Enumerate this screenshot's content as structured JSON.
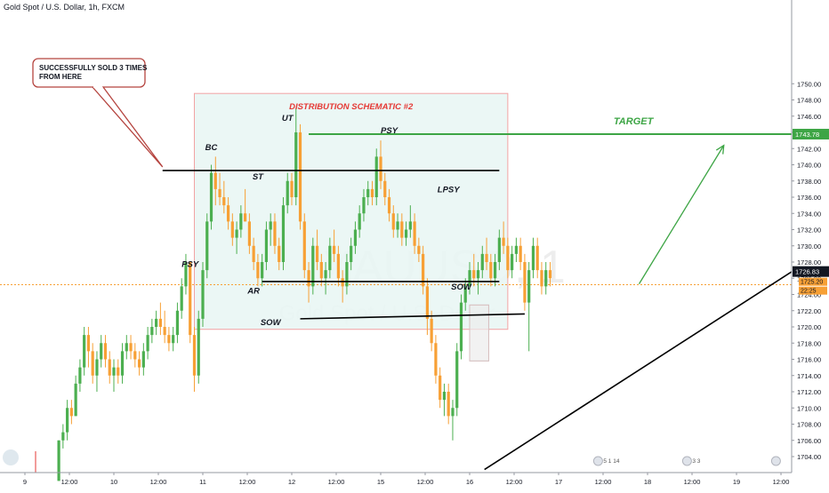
{
  "header": {
    "symbol": "Gold Spot / U.S. Dollar, 1h, FXCM"
  },
  "watermark": {
    "symbol": "XAUUSD, 1",
    "name": "Gold Spot / U.S. Dollar"
  },
  "colors": {
    "up": "#4caf50",
    "down": "#f7a035",
    "box_fill": "#e8f6f3",
    "box_stroke": "#f2a3a3",
    "target": "#3da545",
    "price_line": "#f7a035",
    "title_red": "#e53935"
  },
  "annotations": {
    "schematic_title": "DISTRIBUTION SCHEMATIC #2",
    "target_label": "TARGET",
    "callout_line1": "SUCCESSFULLY SOLD 3 TIMES",
    "callout_line2": "FROM HERE",
    "labels": [
      {
        "key": "ut",
        "text": "UT",
        "x": 62,
        "y": 1745.4
      },
      {
        "key": "psy_top",
        "text": "PSY",
        "x": 86,
        "y": 1743.9
      },
      {
        "key": "bc",
        "text": "BC",
        "x": 44,
        "y": 1741.8
      },
      {
        "key": "st",
        "text": "ST",
        "x": 55,
        "y": 1738.2
      },
      {
        "key": "lpsy",
        "text": "LPSY",
        "x": 100,
        "y": 1736.6
      },
      {
        "key": "psy_low",
        "text": "PSY",
        "x": 39,
        "y": 1727.4
      },
      {
        "key": "sow_right",
        "text": "SOW",
        "x": 103,
        "y": 1724.6
      },
      {
        "key": "ar",
        "text": "AR",
        "x": 54,
        "y": 1724.1
      },
      {
        "key": "sow_left",
        "text": "SOW",
        "x": 58,
        "y": 1720.2
      }
    ]
  },
  "chart_data": {
    "type": "candlestick",
    "symbol": "Gold Spot / U.S. Dollar",
    "timeframe": "1h",
    "ylim": [
      1703,
      1751
    ],
    "y_ticks": [
      1704,
      1706,
      1708,
      1710,
      1712,
      1714,
      1716,
      1718,
      1720,
      1722,
      1724,
      1726,
      1728,
      1730,
      1732,
      1734,
      1736,
      1738,
      1740,
      1742,
      1744,
      1746,
      1748,
      1750
    ],
    "x_ticks": [
      {
        "label": "9",
        "bar": 0
      },
      {
        "label": "12:00",
        "bar": 10.5
      },
      {
        "label": "10",
        "bar": 21
      },
      {
        "label": "12:00",
        "bar": 31.5
      },
      {
        "label": "11",
        "bar": 42
      },
      {
        "label": "12:00",
        "bar": 52.5
      },
      {
        "label": "12",
        "bar": 63
      },
      {
        "label": "12:00",
        "bar": 73.5
      },
      {
        "label": "15",
        "bar": 84
      },
      {
        "label": "12:00",
        "bar": 94.5
      },
      {
        "label": "16",
        "bar": 105
      },
      {
        "label": "12:00",
        "bar": 115.5
      },
      {
        "label": "17",
        "bar": 126
      },
      {
        "label": "12:00",
        "bar": 136.5
      },
      {
        "label": "18",
        "bar": 147
      },
      {
        "label": "12:00",
        "bar": 157.5
      },
      {
        "label": "19",
        "bar": 168
      },
      {
        "label": "12:00",
        "bar": 178.5
      }
    ],
    "current_price": {
      "value": 1726.83,
      "label": "1726.83"
    },
    "target_price": {
      "value": 1743.78,
      "label": "1743.78"
    },
    "price_line_value": 1725.2,
    "small_labels": [
      "1725.20",
      "22:25"
    ],
    "events": [
      {
        "label": "5 1 14",
        "bar": 137
      },
      {
        "label": "3 3",
        "bar": 158
      },
      {
        "label": "",
        "bar": 179
      }
    ],
    "ohlc_start_bar": 8,
    "ohlc": [
      [
        1701,
        1706,
        1701,
        1706
      ],
      [
        1706,
        1708,
        1705,
        1707
      ],
      [
        1707,
        1711,
        1706,
        1710
      ],
      [
        1710,
        1711,
        1708,
        1709
      ],
      [
        1709,
        1714,
        1709,
        1713
      ],
      [
        1713,
        1716,
        1712,
        1715
      ],
      [
        1715,
        1720,
        1714,
        1719
      ],
      [
        1719,
        1720,
        1715,
        1717
      ],
      [
        1717,
        1718,
        1713,
        1714
      ],
      [
        1714,
        1717,
        1712,
        1716
      ],
      [
        1716,
        1719,
        1715,
        1718
      ],
      [
        1718,
        1719,
        1715,
        1716
      ],
      [
        1716,
        1717,
        1713,
        1714
      ],
      [
        1714,
        1716,
        1712,
        1715
      ],
      [
        1715,
        1716,
        1713,
        1714
      ],
      [
        1714,
        1718,
        1713,
        1717
      ],
      [
        1717,
        1719,
        1716,
        1718
      ],
      [
        1718,
        1719,
        1716,
        1717
      ],
      [
        1717,
        1718,
        1715,
        1716
      ],
      [
        1716,
        1717,
        1714,
        1715
      ],
      [
        1715,
        1718,
        1714,
        1717
      ],
      [
        1717,
        1720,
        1716,
        1719
      ],
      [
        1719,
        1721,
        1718,
        1720
      ],
      [
        1720,
        1722,
        1719,
        1721
      ],
      [
        1721,
        1723,
        1719,
        1720
      ],
      [
        1720,
        1722,
        1718,
        1719
      ],
      [
        1719,
        1720,
        1717,
        1718
      ],
      [
        1718,
        1720,
        1717,
        1719
      ],
      [
        1719,
        1723,
        1718,
        1722
      ],
      [
        1722,
        1726,
        1721,
        1725
      ],
      [
        1725,
        1729,
        1724,
        1728
      ],
      [
        1728,
        1728,
        1718,
        1719
      ],
      [
        1719,
        1720,
        1712,
        1714
      ],
      [
        1714,
        1722,
        1713,
        1721
      ],
      [
        1721,
        1728,
        1720,
        1727
      ],
      [
        1727,
        1734,
        1726,
        1733
      ],
      [
        1733,
        1740,
        1732,
        1739
      ],
      [
        1739,
        1741,
        1735,
        1737
      ],
      [
        1737,
        1739,
        1735,
        1736
      ],
      [
        1736,
        1738,
        1734,
        1735
      ],
      [
        1735,
        1736,
        1732,
        1733
      ],
      [
        1733,
        1734,
        1730,
        1731
      ],
      [
        1731,
        1733,
        1729,
        1732
      ],
      [
        1732,
        1735,
        1731,
        1734
      ],
      [
        1734,
        1737,
        1733,
        1733
      ],
      [
        1733,
        1734,
        1729,
        1730
      ],
      [
        1730,
        1731,
        1727,
        1728
      ],
      [
        1728,
        1729,
        1725,
        1726
      ],
      [
        1726,
        1729,
        1725,
        1728
      ],
      [
        1728,
        1733,
        1727,
        1732
      ],
      [
        1732,
        1734,
        1730,
        1733
      ],
      [
        1733,
        1734,
        1729,
        1730
      ],
      [
        1730,
        1731,
        1727,
        1728
      ],
      [
        1728,
        1736,
        1727,
        1735
      ],
      [
        1735,
        1739,
        1734,
        1738
      ],
      [
        1738,
        1739,
        1735,
        1736
      ],
      [
        1736,
        1747,
        1735,
        1744
      ],
      [
        1744,
        1745,
        1732,
        1733
      ],
      [
        1733,
        1734,
        1726,
        1727
      ],
      [
        1727,
        1728,
        1723,
        1725
      ],
      [
        1725,
        1731,
        1724,
        1730
      ],
      [
        1730,
        1732,
        1727,
        1728
      ],
      [
        1728,
        1729,
        1725,
        1726
      ],
      [
        1726,
        1728,
        1724,
        1727
      ],
      [
        1727,
        1731,
        1726,
        1730
      ],
      [
        1730,
        1732,
        1728,
        1729
      ],
      [
        1729,
        1730,
        1725,
        1726
      ],
      [
        1726,
        1727,
        1723,
        1725
      ],
      [
        1725,
        1729,
        1724,
        1728
      ],
      [
        1728,
        1731,
        1727,
        1730
      ],
      [
        1730,
        1733,
        1729,
        1732
      ],
      [
        1732,
        1735,
        1731,
        1734
      ],
      [
        1734,
        1737,
        1733,
        1736
      ],
      [
        1736,
        1738,
        1735,
        1737
      ],
      [
        1737,
        1738,
        1735,
        1736
      ],
      [
        1736,
        1742,
        1735,
        1741
      ],
      [
        1741,
        1743,
        1737,
        1738
      ],
      [
        1738,
        1739,
        1735,
        1736
      ],
      [
        1736,
        1737,
        1733,
        1734
      ],
      [
        1734,
        1735,
        1731,
        1732
      ],
      [
        1732,
        1734,
        1731,
        1733
      ],
      [
        1733,
        1734,
        1730,
        1731
      ],
      [
        1731,
        1733,
        1730,
        1732
      ],
      [
        1732,
        1735,
        1731,
        1733
      ],
      [
        1733,
        1734,
        1729,
        1730
      ],
      [
        1730,
        1731,
        1728,
        1729
      ],
      [
        1729,
        1730,
        1724,
        1725
      ],
      [
        1725,
        1726,
        1719,
        1721
      ],
      [
        1721,
        1722,
        1717,
        1718
      ],
      [
        1718,
        1719,
        1713,
        1714
      ],
      [
        1714,
        1715,
        1710,
        1711
      ],
      [
        1711,
        1713,
        1709,
        1712
      ],
      [
        1712,
        1713,
        1708,
        1709
      ],
      [
        1709,
        1711,
        1706,
        1710
      ],
      [
        1710,
        1718,
        1709,
        1717
      ],
      [
        1717,
        1724,
        1716,
        1723
      ],
      [
        1723,
        1726,
        1722,
        1725
      ],
      [
        1725,
        1728,
        1724,
        1727
      ],
      [
        1727,
        1729,
        1725,
        1726
      ],
      [
        1726,
        1728,
        1724,
        1727
      ],
      [
        1727,
        1730,
        1726,
        1729
      ],
      [
        1729,
        1731,
        1727,
        1728
      ],
      [
        1728,
        1729,
        1725,
        1726
      ],
      [
        1726,
        1729,
        1725,
        1728
      ],
      [
        1728,
        1732,
        1727,
        1731
      ],
      [
        1731,
        1733,
        1729,
        1730
      ],
      [
        1730,
        1731,
        1726,
        1727
      ],
      [
        1727,
        1730,
        1726,
        1729
      ],
      [
        1729,
        1731,
        1728,
        1730
      ],
      [
        1730,
        1731,
        1727,
        1728
      ],
      [
        1728,
        1729,
        1722,
        1723
      ],
      [
        1723,
        1728,
        1717,
        1727
      ],
      [
        1727,
        1731,
        1726,
        1730
      ],
      [
        1730,
        1731,
        1726,
        1727
      ],
      [
        1727,
        1728,
        1724,
        1725
      ],
      [
        1725,
        1728,
        1724,
        1727
      ],
      [
        1727,
        1728,
        1725,
        1726
      ]
    ],
    "trendlines": [
      {
        "name": "resistance",
        "from": [
          32.5,
          1739.3
        ],
        "to": [
          112,
          1739.3
        ],
        "color": "#000000"
      },
      {
        "name": "ar-level",
        "from": [
          56,
          1725.6
        ],
        "to": [
          112,
          1725.6
        ],
        "color": "#000000"
      },
      {
        "name": "sow-level",
        "from": [
          65,
          1721.0
        ],
        "to": [
          118,
          1721.6
        ],
        "color": "#000000"
      },
      {
        "name": "ascending-support",
        "from": [
          108.5,
          1702.4
        ],
        "to": [
          207,
          1726.8
        ],
        "color": "#000000"
      },
      {
        "name": "target-level",
        "from": [
          67,
          1743.78
        ],
        "to": [
          207,
          1743.78
        ],
        "color": "#3da545"
      }
    ],
    "boxes": [
      {
        "name": "distribution-box",
        "x0": 40,
        "x1": 114,
        "y0": 1719.7,
        "y1": 1748.8
      },
      {
        "name": "sow-highlight",
        "x0": 105,
        "x1": 109.5,
        "y0": 1715.8,
        "y1": 1722.7
      }
    ],
    "target_arrow": {
      "from": [
        145,
        1725.3
      ],
      "to": [
        165,
        1742.4
      ]
    },
    "callout_anchor": {
      "bar": 32.5,
      "value": 1739.3
    }
  }
}
